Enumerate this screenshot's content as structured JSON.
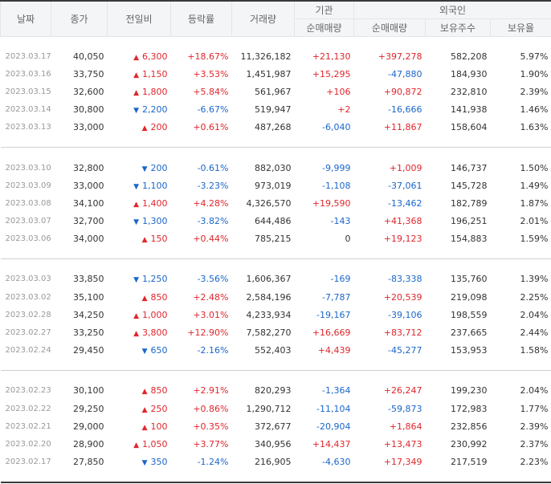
{
  "colors": {
    "up": "#e0262c",
    "down": "#1b66c9"
  },
  "header": {
    "date": "날짜",
    "close": "종가",
    "change": "전일비",
    "rate": "등락률",
    "volume": "거래량",
    "inst": "기관",
    "foreign": "외국인",
    "inst_net": "순매매량",
    "foreign_net": "순매매량",
    "foreign_hold": "보유주수",
    "foreign_ratio": "보유율"
  },
  "groups": [
    [
      {
        "date": "2023.03.17",
        "close": "40,050",
        "dir": "up",
        "change": "6,300",
        "rate": "+18.67%",
        "volume": "11,326,182",
        "inst": "+21,130",
        "foreign": "+397,278",
        "hold": "582,208",
        "ratio": "5.97%"
      },
      {
        "date": "2023.03.16",
        "close": "33,750",
        "dir": "up",
        "change": "1,150",
        "rate": "+3.53%",
        "volume": "1,451,987",
        "inst": "+15,295",
        "foreign": "-47,880",
        "hold": "184,930",
        "ratio": "1.90%"
      },
      {
        "date": "2023.03.15",
        "close": "32,600",
        "dir": "up",
        "change": "1,800",
        "rate": "+5.84%",
        "volume": "561,967",
        "inst": "+106",
        "foreign": "+90,872",
        "hold": "232,810",
        "ratio": "2.39%"
      },
      {
        "date": "2023.03.14",
        "close": "30,800",
        "dir": "down",
        "change": "2,200",
        "rate": "-6.67%",
        "volume": "519,947",
        "inst": "+2",
        "foreign": "-16,666",
        "hold": "141,938",
        "ratio": "1.46%"
      },
      {
        "date": "2023.03.13",
        "close": "33,000",
        "dir": "up",
        "change": "200",
        "rate": "+0.61%",
        "volume": "487,268",
        "inst": "-6,040",
        "foreign": "+11,867",
        "hold": "158,604",
        "ratio": "1.63%"
      }
    ],
    [
      {
        "date": "2023.03.10",
        "close": "32,800",
        "dir": "down",
        "change": "200",
        "rate": "-0.61%",
        "volume": "882,030",
        "inst": "-9,999",
        "foreign": "+1,009",
        "hold": "146,737",
        "ratio": "1.50%"
      },
      {
        "date": "2023.03.09",
        "close": "33,000",
        "dir": "down",
        "change": "1,100",
        "rate": "-3.23%",
        "volume": "973,019",
        "inst": "-1,108",
        "foreign": "-37,061",
        "hold": "145,728",
        "ratio": "1.49%"
      },
      {
        "date": "2023.03.08",
        "close": "34,100",
        "dir": "up",
        "change": "1,400",
        "rate": "+4.28%",
        "volume": "4,326,570",
        "inst": "+19,590",
        "foreign": "-13,462",
        "hold": "182,789",
        "ratio": "1.87%"
      },
      {
        "date": "2023.03.07",
        "close": "32,700",
        "dir": "down",
        "change": "1,300",
        "rate": "-3.82%",
        "volume": "644,486",
        "inst": "-143",
        "foreign": "+41,368",
        "hold": "196,251",
        "ratio": "2.01%"
      },
      {
        "date": "2023.03.06",
        "close": "34,000",
        "dir": "up",
        "change": "150",
        "rate": "+0.44%",
        "volume": "785,215",
        "inst": "0",
        "foreign": "+19,123",
        "hold": "154,883",
        "ratio": "1.59%"
      }
    ],
    [
      {
        "date": "2023.03.03",
        "close": "33,850",
        "dir": "down",
        "change": "1,250",
        "rate": "-3.56%",
        "volume": "1,606,367",
        "inst": "-169",
        "foreign": "-83,338",
        "hold": "135,760",
        "ratio": "1.39%"
      },
      {
        "date": "2023.03.02",
        "close": "35,100",
        "dir": "up",
        "change": "850",
        "rate": "+2.48%",
        "volume": "2,584,196",
        "inst": "-7,787",
        "foreign": "+20,539",
        "hold": "219,098",
        "ratio": "2.25%"
      },
      {
        "date": "2023.02.28",
        "close": "34,250",
        "dir": "up",
        "change": "1,000",
        "rate": "+3.01%",
        "volume": "4,233,934",
        "inst": "-19,167",
        "foreign": "-39,106",
        "hold": "198,559",
        "ratio": "2.04%"
      },
      {
        "date": "2023.02.27",
        "close": "33,250",
        "dir": "up",
        "change": "3,800",
        "rate": "+12.90%",
        "volume": "7,582,270",
        "inst": "+16,669",
        "foreign": "+83,712",
        "hold": "237,665",
        "ratio": "2.44%"
      },
      {
        "date": "2023.02.24",
        "close": "29,450",
        "dir": "down",
        "change": "650",
        "rate": "-2.16%",
        "volume": "552,403",
        "inst": "+4,439",
        "foreign": "-45,277",
        "hold": "153,953",
        "ratio": "1.58%"
      }
    ],
    [
      {
        "date": "2023.02.23",
        "close": "30,100",
        "dir": "up",
        "change": "850",
        "rate": "+2.91%",
        "volume": "820,293",
        "inst": "-1,364",
        "foreign": "+26,247",
        "hold": "199,230",
        "ratio": "2.04%"
      },
      {
        "date": "2023.02.22",
        "close": "29,250",
        "dir": "up",
        "change": "250",
        "rate": "+0.86%",
        "volume": "1,290,712",
        "inst": "-11,104",
        "foreign": "-59,873",
        "hold": "172,983",
        "ratio": "1.77%"
      },
      {
        "date": "2023.02.21",
        "close": "29,000",
        "dir": "up",
        "change": "100",
        "rate": "+0.35%",
        "volume": "372,677",
        "inst": "-20,904",
        "foreign": "+1,864",
        "hold": "232,856",
        "ratio": "2.39%"
      },
      {
        "date": "2023.02.20",
        "close": "28,900",
        "dir": "up",
        "change": "1,050",
        "rate": "+3.77%",
        "volume": "340,956",
        "inst": "+14,437",
        "foreign": "+13,473",
        "hold": "230,992",
        "ratio": "2.37%"
      },
      {
        "date": "2023.02.17",
        "close": "27,850",
        "dir": "down",
        "change": "350",
        "rate": "-1.24%",
        "volume": "216,905",
        "inst": "-4,630",
        "foreign": "+17,349",
        "hold": "217,519",
        "ratio": "2.23%"
      }
    ]
  ]
}
